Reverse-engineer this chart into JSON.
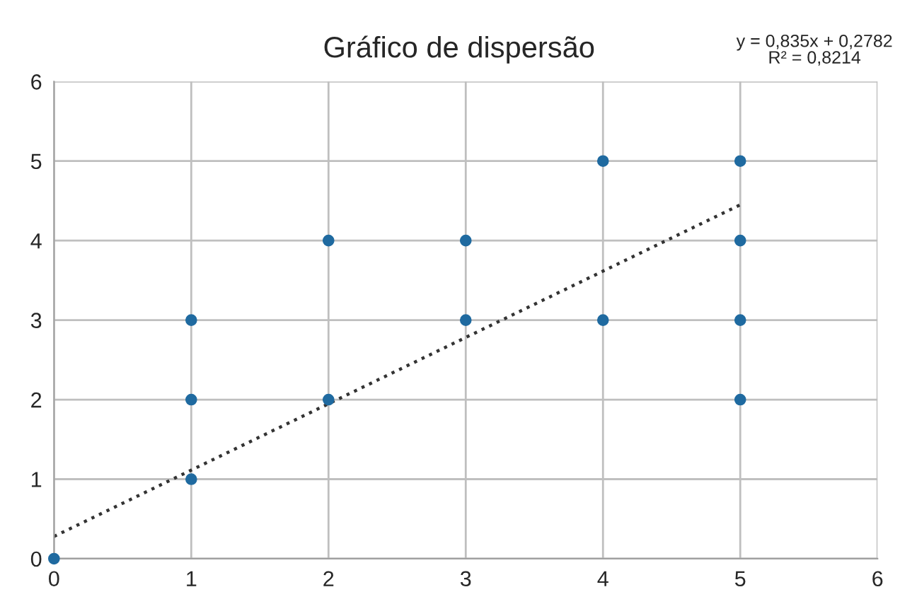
{
  "chart_data": {
    "type": "scatter",
    "title": "Gráfico de dispersão",
    "annotations": [
      "y = 0,835x + 0,2782\nR² = 0,8214"
    ],
    "series": [
      {
        "color": "#1f6aa0",
        "x": [
          0,
          1,
          1,
          1,
          2,
          2,
          3,
          3,
          4,
          4,
          5,
          5,
          5,
          5
        ],
        "values": [
          0,
          1,
          2,
          3,
          2,
          4,
          3,
          4,
          3,
          5,
          2,
          3,
          4,
          5
        ],
        "marker": "circle"
      },
      {
        "type": "line",
        "color": "#333333",
        "x": [
          0,
          5
        ],
        "values": [
          0.28,
          4.45
        ],
        "line_style": "dotted",
        "marker": "none"
      }
    ],
    "xlim": [
      0,
      6
    ],
    "ylim": [
      0,
      6
    ],
    "xticks": [
      0,
      1,
      2,
      3,
      4,
      5,
      6
    ],
    "yticks": [
      0,
      1,
      2,
      3,
      4,
      5,
      6
    ],
    "grid": true
  }
}
